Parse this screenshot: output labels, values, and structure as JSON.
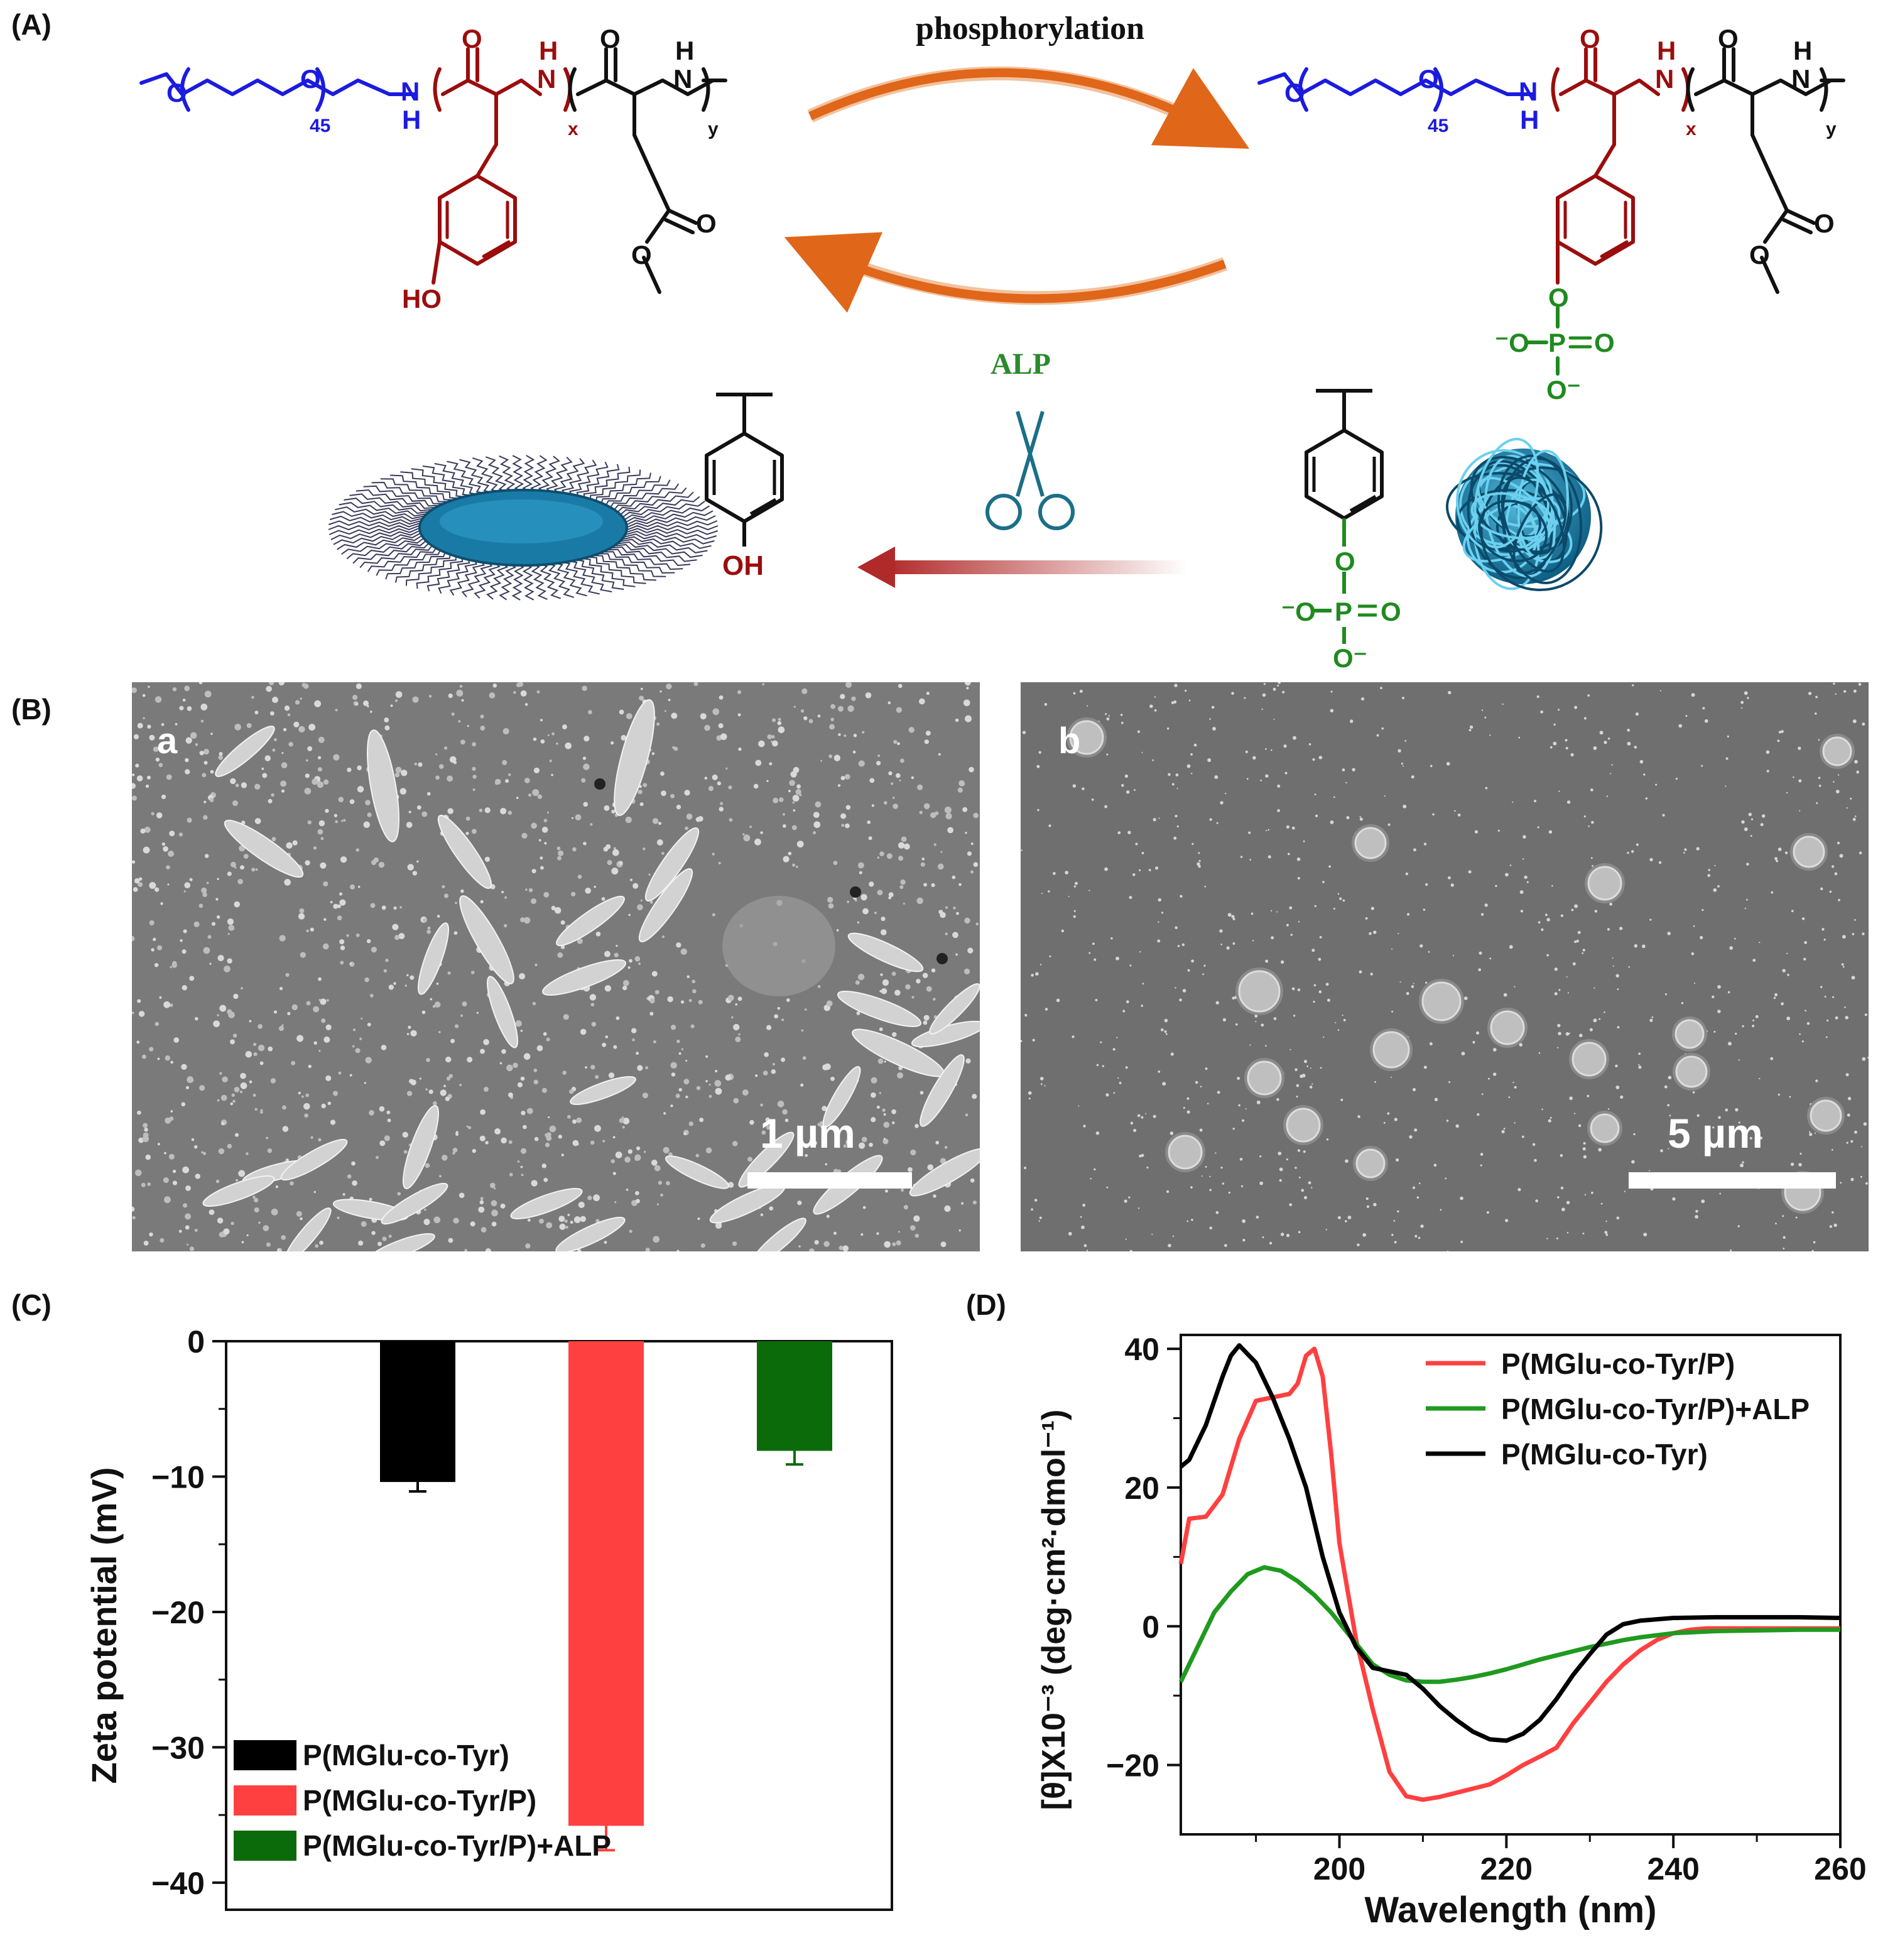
{
  "figure": {
    "panel_labels": {
      "A": "(A)",
      "B": "(B)",
      "C": "(C)",
      "D": "(D)"
    },
    "panel_a": {
      "top_arrow_label": "phosphorylation",
      "bottom_arrow_label": "ALP",
      "peg_subscript": "45",
      "x_subscript": "x",
      "y_subscript": "y",
      "ho_label": "HO",
      "oh_label": "OH",
      "o": "O",
      "n": "N",
      "h": "H",
      "nh": "NH",
      "p": "P",
      "o_minus": "⁻O",
      "o_minus_b": "O⁻"
    },
    "panel_b": {
      "image_a_label": "a",
      "image_b_label": "b",
      "scalebar_a": "1 µm",
      "scalebar_b": "5 µm"
    },
    "colors": {
      "peg": "#1b1be0",
      "tyr": "#9b0d0d",
      "phosphate": "#1f8a1f",
      "arrow_orange": "#e0661a",
      "alp_green": "#2b8a2b",
      "series_black": "#000000",
      "series_red": "#ff4040",
      "series_green": "#0b7a0b"
    }
  },
  "chart_data": [
    {
      "type": "bar",
      "panel": "C",
      "categories": [
        "P(MGlu-co-Tyr)",
        "P(MGlu-co-Tyr/P)",
        "P(MGlu-co-Tyr/P)+ALP"
      ],
      "values": [
        -10.4,
        -35.8,
        -8.1
      ],
      "errors": [
        0.7,
        1.8,
        1.0
      ],
      "colors": [
        "#000000",
        "#ff4040",
        "#0b6b0b"
      ],
      "ylabel": "Zeta potential (mV)",
      "ylim": [
        -42,
        0
      ],
      "yticks": [
        0,
        -10,
        -20,
        -30,
        -40
      ],
      "ytick_labels": [
        "0",
        "−10",
        "−20",
        "−30",
        "−40"
      ],
      "legend": [
        "P(MGlu-co-Tyr)",
        "P(MGlu-co-Tyr/P)",
        "P(MGlu-co-Tyr/P)+ALP"
      ],
      "legend_position": "bottom-left"
    },
    {
      "type": "line",
      "panel": "D",
      "xlabel": "Wavelength (nm)",
      "ylabel": "[θ]X10⁻³ (deg·cm²·dmol⁻¹)",
      "xlim": [
        181,
        260
      ],
      "ylim": [
        -30,
        42
      ],
      "xticks": [
        200,
        220,
        240,
        260
      ],
      "yticks": [
        40,
        20,
        0,
        -20
      ],
      "ytick_labels": [
        "40",
        "20",
        "0",
        "−20"
      ],
      "legend_position": "top-right",
      "series": [
        {
          "name": "P(MGlu-co-Tyr/P)",
          "color": "#ff4040",
          "x": [
            181,
            182,
            184,
            186,
            188,
            190,
            192,
            194,
            195,
            196,
            197,
            198,
            199,
            200,
            202,
            204,
            206,
            208,
            210,
            212,
            214,
            216,
            218,
            220,
            222,
            224,
            226,
            228,
            230,
            232,
            234,
            236,
            238,
            240,
            242,
            244,
            246,
            250,
            255,
            260
          ],
          "y": [
            9,
            15.5,
            15.8,
            19,
            27,
            32.5,
            33,
            33.5,
            35,
            39,
            40,
            36,
            25,
            12,
            -2,
            -12,
            -21,
            -24.5,
            -25,
            -24.6,
            -24,
            -23.4,
            -22.8,
            -21.5,
            -20,
            -18.8,
            -17.5,
            -14,
            -11,
            -8,
            -5.5,
            -3.5,
            -2,
            -1,
            -0.5,
            -0.3,
            -0.3,
            -0.3,
            -0.3,
            -0.3
          ]
        },
        {
          "name": "P(MGlu-co-Tyr/P)+ALP",
          "color": "#1f9a1f",
          "x": [
            181,
            183,
            185,
            187,
            189,
            191,
            193,
            195,
            197,
            199,
            200,
            202,
            204,
            206,
            208,
            210,
            212,
            214,
            216,
            218,
            220,
            222,
            224,
            226,
            228,
            230,
            232,
            234,
            236,
            240,
            245,
            250,
            255,
            260
          ],
          "y": [
            -8,
            -3,
            2,
            5,
            7.5,
            8.5,
            8,
            6.5,
            4.5,
            2,
            0.5,
            -2.5,
            -5.5,
            -7,
            -7.8,
            -8,
            -8,
            -7.7,
            -7.3,
            -6.8,
            -6.2,
            -5.5,
            -4.8,
            -4.2,
            -3.6,
            -3,
            -2.5,
            -2,
            -1.6,
            -1,
            -0.7,
            -0.6,
            -0.5,
            -0.5
          ]
        },
        {
          "name": "P(MGlu-co-Tyr)",
          "color": "#000000",
          "x": [
            181,
            182,
            184,
            186,
            187,
            188,
            190,
            192,
            194,
            196,
            198,
            200,
            202,
            204,
            206,
            208,
            210,
            212,
            214,
            216,
            218,
            220,
            222,
            224,
            226,
            228,
            230,
            232,
            234,
            236,
            240,
            245,
            250,
            255,
            260
          ],
          "y": [
            23,
            24,
            29,
            36,
            39,
            40.5,
            38,
            33,
            27,
            20,
            10,
            2,
            -3,
            -6,
            -6.5,
            -7,
            -9,
            -11.5,
            -13.5,
            -15.2,
            -16.3,
            -16.5,
            -15.5,
            -13.5,
            -10.5,
            -7,
            -4,
            -1.2,
            0.3,
            0.8,
            1.2,
            1.3,
            1.3,
            1.3,
            1.2
          ]
        }
      ]
    }
  ]
}
